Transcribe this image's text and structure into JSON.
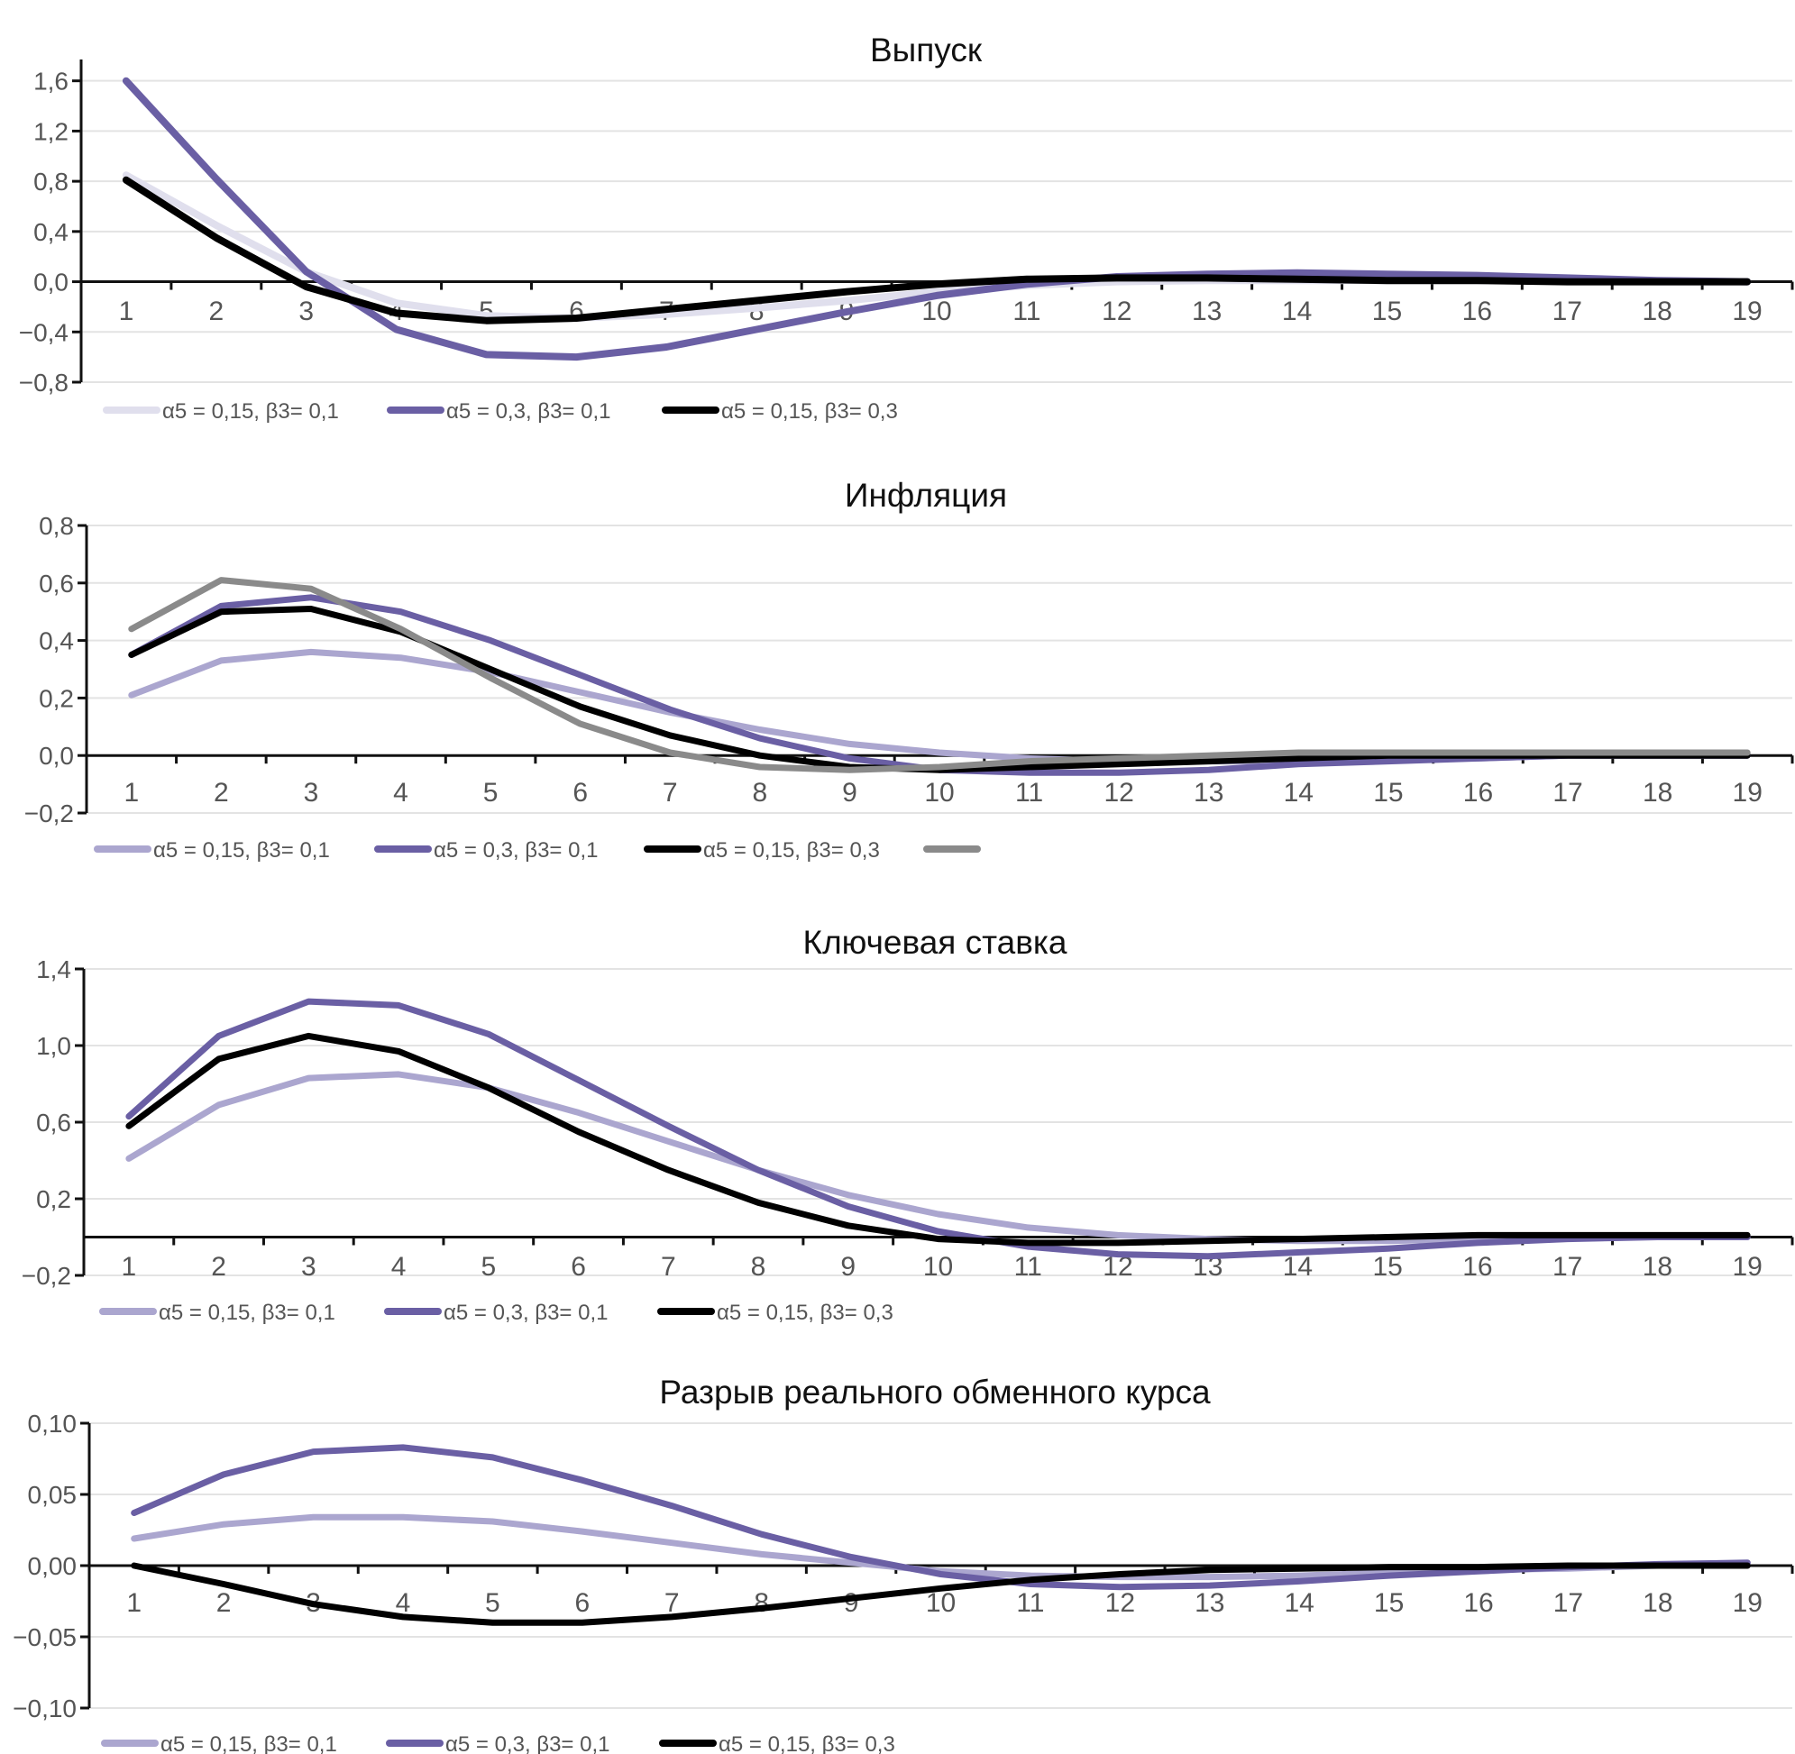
{
  "chart_data": [
    {
      "type": "line",
      "title": "Выпуск",
      "xlabel": "",
      "ylabel": "",
      "x": [
        1,
        2,
        3,
        4,
        5,
        6,
        7,
        8,
        9,
        10,
        11,
        12,
        13,
        14,
        15,
        16,
        17,
        18,
        19
      ],
      "y_ticks": [
        1.6,
        1.2,
        0.8,
        0.4,
        0.0,
        -0.4,
        -0.8
      ],
      "y_tick_labels": [
        "1,6",
        "1,2",
        "0,8",
        "0,4",
        "0,0",
        "−0,4",
        "−0,8"
      ],
      "ylim": [
        -0.8,
        1.77
      ],
      "grid": true,
      "legend": "bottom",
      "series": [
        {
          "name": "α5 = 0,15, β3= 0,1",
          "color": "#e0dfed",
          "values": [
            0.85,
            0.45,
            0.08,
            -0.17,
            -0.27,
            -0.29,
            -0.26,
            -0.21,
            -0.15,
            -0.08,
            -0.03,
            0.0,
            0.01,
            0.01,
            0.01,
            0.01,
            0.01,
            0.0,
            0.0
          ]
        },
        {
          "name": "α5 = 0,3, β3= 0,1",
          "color": "#6a5fa4",
          "values": [
            1.6,
            0.82,
            0.08,
            -0.38,
            -0.58,
            -0.6,
            -0.52,
            -0.38,
            -0.24,
            -0.11,
            -0.02,
            0.04,
            0.06,
            0.07,
            0.06,
            0.05,
            0.03,
            0.01,
            0.0
          ]
        },
        {
          "name": "α5 = 0,15, β3= 0,3",
          "color": "#000000",
          "values": [
            0.81,
            0.35,
            -0.04,
            -0.25,
            -0.31,
            -0.29,
            -0.22,
            -0.15,
            -0.08,
            -0.02,
            0.02,
            0.03,
            0.03,
            0.02,
            0.01,
            0.01,
            0.0,
            0.0,
            0.0
          ]
        }
      ]
    },
    {
      "type": "line",
      "title": "Инфляция",
      "xlabel": "",
      "ylabel": "",
      "x": [
        1,
        2,
        3,
        4,
        5,
        6,
        7,
        8,
        9,
        10,
        11,
        12,
        13,
        14,
        15,
        16,
        17,
        18,
        19
      ],
      "y_ticks": [
        0.8,
        0.6,
        0.4,
        0.2,
        0.0,
        -0.2
      ],
      "y_tick_labels": [
        "0,8",
        "0,6",
        "0,4",
        "0,2",
        "0,0",
        "−0,2"
      ],
      "ylim": [
        -0.2,
        0.8
      ],
      "grid": true,
      "legend": "bottom",
      "series": [
        {
          "name": "α5 = 0,15, β3= 0,1",
          "color": "#aba6cf",
          "values": [
            0.21,
            0.33,
            0.36,
            0.34,
            0.29,
            0.22,
            0.15,
            0.09,
            0.04,
            0.01,
            -0.01,
            -0.02,
            -0.02,
            -0.02,
            -0.01,
            -0.01,
            0.0,
            0.0,
            0.0
          ]
        },
        {
          "name": "α5 = 0,3, β3= 0,1",
          "color": "#6a5fa4",
          "values": [
            0.35,
            0.52,
            0.55,
            0.5,
            0.4,
            0.28,
            0.16,
            0.06,
            -0.01,
            -0.05,
            -0.06,
            -0.06,
            -0.05,
            -0.03,
            -0.02,
            -0.01,
            0.0,
            0.0,
            0.0
          ]
        },
        {
          "name": "α5 = 0,15, β3= 0,3",
          "color": "#000000",
          "values": [
            0.35,
            0.5,
            0.51,
            0.43,
            0.3,
            0.17,
            0.07,
            0.0,
            -0.04,
            -0.05,
            -0.04,
            -0.03,
            -0.02,
            -0.01,
            0.0,
            0.0,
            0.0,
            0.0,
            0.0
          ]
        },
        {
          "name": "",
          "color": "#8a8a8a",
          "values": [
            0.44,
            0.61,
            0.58,
            0.44,
            0.27,
            0.11,
            0.01,
            -0.04,
            -0.05,
            -0.04,
            -0.02,
            -0.01,
            0.0,
            0.01,
            0.01,
            0.01,
            0.01,
            0.01,
            0.01
          ]
        }
      ]
    },
    {
      "type": "line",
      "title": "Ключевая ставка",
      "xlabel": "",
      "ylabel": "",
      "x": [
        1,
        2,
        3,
        4,
        5,
        6,
        7,
        8,
        9,
        10,
        11,
        12,
        13,
        14,
        15,
        16,
        17,
        18,
        19
      ],
      "y_ticks": [
        1.4,
        1.0,
        0.6,
        0.2,
        -0.2
      ],
      "y_tick_labels": [
        "1,4",
        "1,0",
        "0,6",
        "0,2",
        "−0,2"
      ],
      "ylim": [
        -0.2,
        1.4
      ],
      "grid": true,
      "legend": "bottom",
      "series": [
        {
          "name": "α5 = 0,15, β3= 0,1",
          "color": "#aba6cf",
          "values": [
            0.41,
            0.69,
            0.83,
            0.85,
            0.78,
            0.65,
            0.5,
            0.35,
            0.22,
            0.12,
            0.05,
            0.01,
            -0.01,
            -0.02,
            -0.02,
            -0.01,
            0.0,
            0.0,
            0.0
          ]
        },
        {
          "name": "α5 = 0,3, β3= 0,1",
          "color": "#6a5fa4",
          "values": [
            0.63,
            1.05,
            1.23,
            1.21,
            1.06,
            0.82,
            0.58,
            0.35,
            0.16,
            0.03,
            -0.05,
            -0.09,
            -0.1,
            -0.08,
            -0.06,
            -0.03,
            -0.01,
            0.0,
            0.0
          ]
        },
        {
          "name": "α5 = 0,15, β3= 0,3",
          "color": "#000000",
          "values": [
            0.58,
            0.93,
            1.05,
            0.97,
            0.78,
            0.55,
            0.35,
            0.18,
            0.06,
            -0.01,
            -0.03,
            -0.03,
            -0.02,
            -0.01,
            0.0,
            0.01,
            0.01,
            0.01,
            0.01
          ]
        }
      ]
    },
    {
      "type": "line",
      "title": "Разрыв реального обменного курса",
      "xlabel": "",
      "ylabel": "",
      "x": [
        1,
        2,
        3,
        4,
        5,
        6,
        7,
        8,
        9,
        10,
        11,
        12,
        13,
        14,
        15,
        16,
        17,
        18,
        19
      ],
      "y_ticks": [
        0.1,
        0.05,
        0.0,
        -0.05,
        -0.1
      ],
      "y_tick_labels": [
        "0,10",
        "0,05",
        "0,00",
        "−0,05",
        "−0,10"
      ],
      "ylim": [
        -0.1,
        0.1
      ],
      "grid": true,
      "legend": "bottom",
      "series": [
        {
          "name": "α5 = 0,15, β3= 0,1",
          "color": "#aba6cf",
          "values": [
            0.019,
            0.029,
            0.034,
            0.034,
            0.031,
            0.024,
            0.016,
            0.008,
            0.002,
            -0.004,
            -0.007,
            -0.008,
            -0.008,
            -0.007,
            -0.005,
            -0.003,
            -0.002,
            0.0,
            0.001
          ]
        },
        {
          "name": "α5 = 0,3, β3= 0,1",
          "color": "#6a5fa4",
          "values": [
            0.037,
            0.064,
            0.08,
            0.083,
            0.076,
            0.06,
            0.042,
            0.022,
            0.006,
            -0.006,
            -0.013,
            -0.015,
            -0.014,
            -0.011,
            -0.007,
            -0.004,
            -0.001,
            0.001,
            0.002
          ]
        },
        {
          "name": "α5 = 0,15, β3= 0,3",
          "color": "#000000",
          "values": [
            0.0,
            -0.013,
            -0.027,
            -0.036,
            -0.04,
            -0.04,
            -0.036,
            -0.03,
            -0.023,
            -0.016,
            -0.01,
            -0.006,
            -0.003,
            -0.002,
            -0.001,
            -0.001,
            0.0,
            0.0,
            0.0
          ]
        }
      ]
    }
  ]
}
